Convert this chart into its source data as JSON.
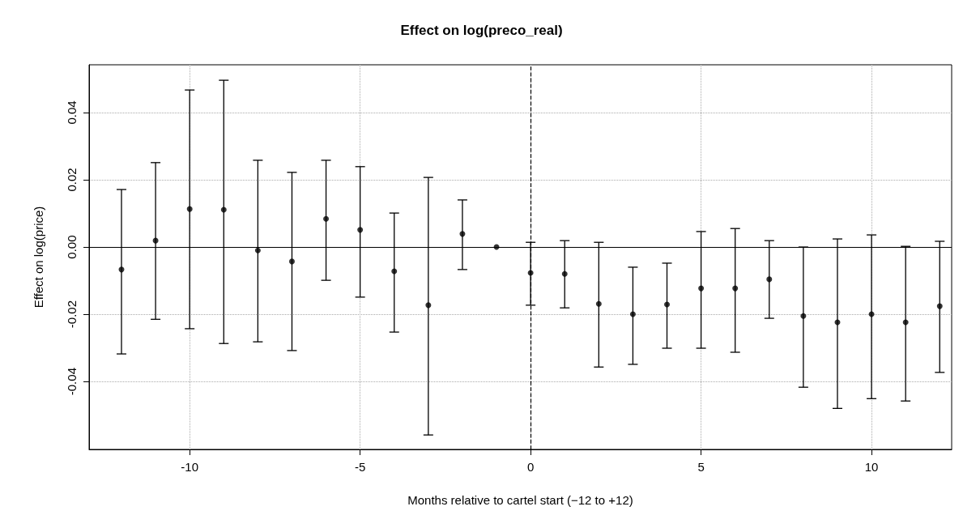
{
  "chart_data": {
    "type": "scatter",
    "title": "Effect on log(preco_real)",
    "xlabel": "Months relative to cartel start (−12 to +12)",
    "ylabel": "Effect on log(price)",
    "x": [
      -12,
      -11,
      -10,
      -9,
      -8,
      -7,
      -6,
      -5,
      -4,
      -3,
      -2,
      -1,
      0,
      1,
      2,
      3,
      4,
      5,
      6,
      7,
      8,
      9,
      10,
      11,
      12
    ],
    "series": [
      {
        "color": "#000000",
        "values": [
          -0.0067,
          0.0019,
          0.0113,
          0.0111,
          -0.001,
          -0.0043,
          0.0084,
          0.0051,
          -0.0072,
          -0.0173,
          0.0039,
          0,
          -0.0077,
          -0.008,
          -0.0169,
          -0.02,
          -0.0171,
          -0.0123,
          -0.0123,
          -0.0096,
          -0.0205,
          -0.0224,
          -0.02,
          -0.0224,
          -0.0176
        ],
        "errors": [
          [
            -0.0318,
            0.0171
          ],
          [
            -0.0215,
            0.0251
          ],
          [
            -0.0243,
            0.0467
          ],
          [
            -0.0287,
            0.0496
          ],
          [
            -0.0282,
            0.0258
          ],
          [
            -0.0308,
            0.0222
          ],
          [
            -0.0099,
            0.0258
          ],
          [
            -0.0149,
            0.0239
          ],
          [
            -0.0253,
            0.0101
          ],
          [
            -0.0559,
            0.0207
          ],
          [
            -0.0067,
            0.014
          ],
          null,
          [
            -0.0173,
            0.0014
          ],
          [
            -0.0181,
            0.0019
          ],
          [
            -0.0357,
            0.0014
          ],
          [
            -0.0349,
            -0.006
          ],
          [
            -0.0301,
            -0.0048
          ],
          [
            -0.0301,
            0.0046
          ],
          [
            -0.0313,
            0.0055
          ],
          [
            -0.0212,
            0.0019
          ],
          [
            -0.0417,
            0
          ],
          [
            -0.048,
            0.0024
          ],
          [
            -0.0451,
            0.0036
          ],
          [
            -0.0458,
            0.0002
          ],
          [
            -0.0373,
            0.0017
          ]
        ]
      }
    ],
    "xlim": [
      -12.95,
      12.35
    ],
    "ylim": [
      -0.0602,
      0.0542
    ],
    "xticks": [
      -10,
      -5,
      0,
      5,
      10
    ],
    "yticks": [
      {
        "value": -0.04,
        "label": "-0.04"
      },
      {
        "value": -0.02,
        "label": "-0.02"
      },
      {
        "value": 0,
        "label": "0.00"
      },
      {
        "value": 0.02,
        "label": "0.02"
      },
      {
        "value": 0.04,
        "label": "0.04"
      }
    ],
    "grid": true,
    "marker": "circle",
    "ref_lines": [
      {
        "axis": "y",
        "value": 0,
        "line_style": "solid",
        "color": "#000000"
      },
      {
        "axis": "x",
        "value": 0,
        "line_style": "dashed",
        "color": "#000000"
      }
    ]
  }
}
